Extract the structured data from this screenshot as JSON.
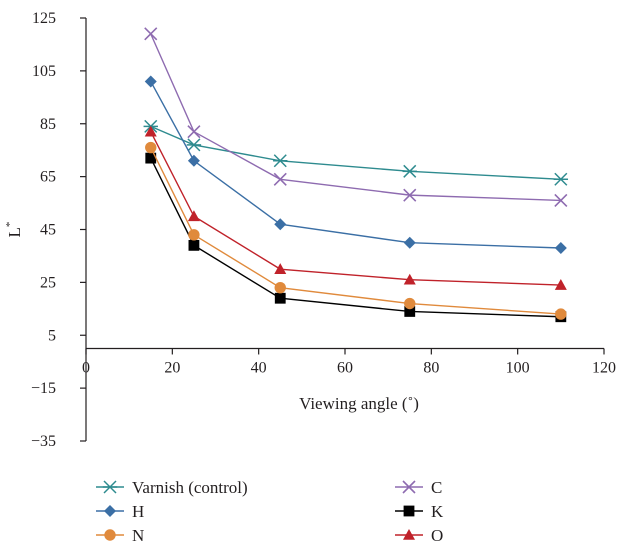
{
  "chart_data": {
    "type": "line",
    "title": "",
    "xlabel": "Viewing angle (˚)",
    "ylabel": "L",
    "ylabel_sup": "*",
    "xlim": [
      0,
      120
    ],
    "ylim": [
      -35,
      125
    ],
    "x_ticks": [
      "0",
      "20",
      "40",
      "60",
      "80",
      "100",
      "120"
    ],
    "y_ticks": [
      "125",
      "105",
      "85",
      "65",
      "45",
      "25",
      "5",
      "−15",
      "−35"
    ],
    "grid": false,
    "legend_position": "bottom",
    "x": [
      15,
      25,
      45,
      75,
      110
    ],
    "series": [
      {
        "name": "Varnish (control)",
        "marker": "asterisk",
        "color": "#2e8b8f",
        "values": [
          84,
          77,
          71,
          67,
          64
        ]
      },
      {
        "name": "C",
        "marker": "x",
        "color": "#8e6bb0",
        "values": [
          119,
          82,
          64,
          58,
          56
        ]
      },
      {
        "name": "H",
        "marker": "diamond",
        "color": "#3b6fa5",
        "values": [
          101,
          71,
          47,
          40,
          38
        ]
      },
      {
        "name": "K",
        "marker": "square",
        "color": "#000000",
        "values": [
          72,
          39,
          19,
          14,
          12
        ]
      },
      {
        "name": "N",
        "marker": "circle",
        "color": "#e08a3c",
        "values": [
          76,
          43,
          23,
          17,
          13
        ]
      },
      {
        "name": "O",
        "marker": "triangle",
        "color": "#c0222a",
        "values": [
          82,
          50,
          30,
          26,
          24
        ]
      }
    ]
  }
}
